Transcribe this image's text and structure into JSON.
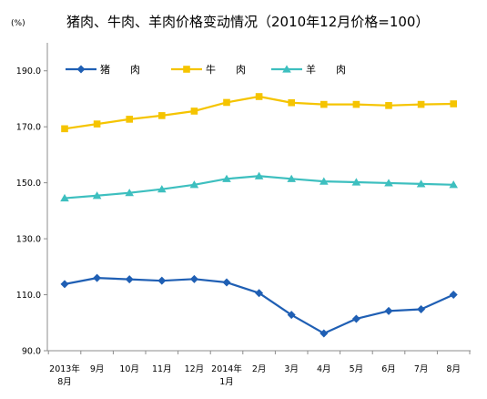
{
  "unit_label": "(%)",
  "chart_data": {
    "type": "line",
    "title": "猪肉、牛肉、羊肉价格变动情况（2010年12月价格=100）",
    "xlabel": "",
    "ylabel": "",
    "ylim": [
      90,
      200
    ],
    "yticks": [
      "90.0",
      "110.0",
      "130.0",
      "150.0",
      "170.0",
      "190.0"
    ],
    "categories": [
      [
        "2013年",
        "8月"
      ],
      [
        "9月"
      ],
      [
        "10月"
      ],
      [
        "11月"
      ],
      [
        "12月"
      ],
      [
        "2014年",
        "1月"
      ],
      [
        "2月"
      ],
      [
        "3月"
      ],
      [
        "4月"
      ],
      [
        "5月"
      ],
      [
        "6月"
      ],
      [
        "7月"
      ],
      [
        "8月"
      ]
    ],
    "legend_position": "top-left",
    "grid": false,
    "series": [
      {
        "name": "猪　　肉",
        "color": "#1f5fb4",
        "marker": "diamond",
        "values": [
          113.8,
          116.0,
          115.5,
          115.0,
          115.6,
          114.4,
          110.6,
          102.8,
          96.2,
          101.4,
          104.2,
          104.8,
          110.0
        ]
      },
      {
        "name": "牛　　肉",
        "color": "#f5c400",
        "marker": "square",
        "values": [
          169.3,
          171.0,
          172.7,
          174.0,
          175.6,
          178.7,
          180.8,
          178.6,
          178.0,
          178.0,
          177.6,
          178.0,
          178.2
        ]
      },
      {
        "name": "羊　　肉",
        "color": "#3dbfbf",
        "marker": "triangle",
        "values": [
          144.5,
          145.4,
          146.4,
          147.7,
          149.3,
          151.4,
          152.4,
          151.4,
          150.5,
          150.2,
          149.9,
          149.6,
          149.3
        ]
      }
    ]
  }
}
